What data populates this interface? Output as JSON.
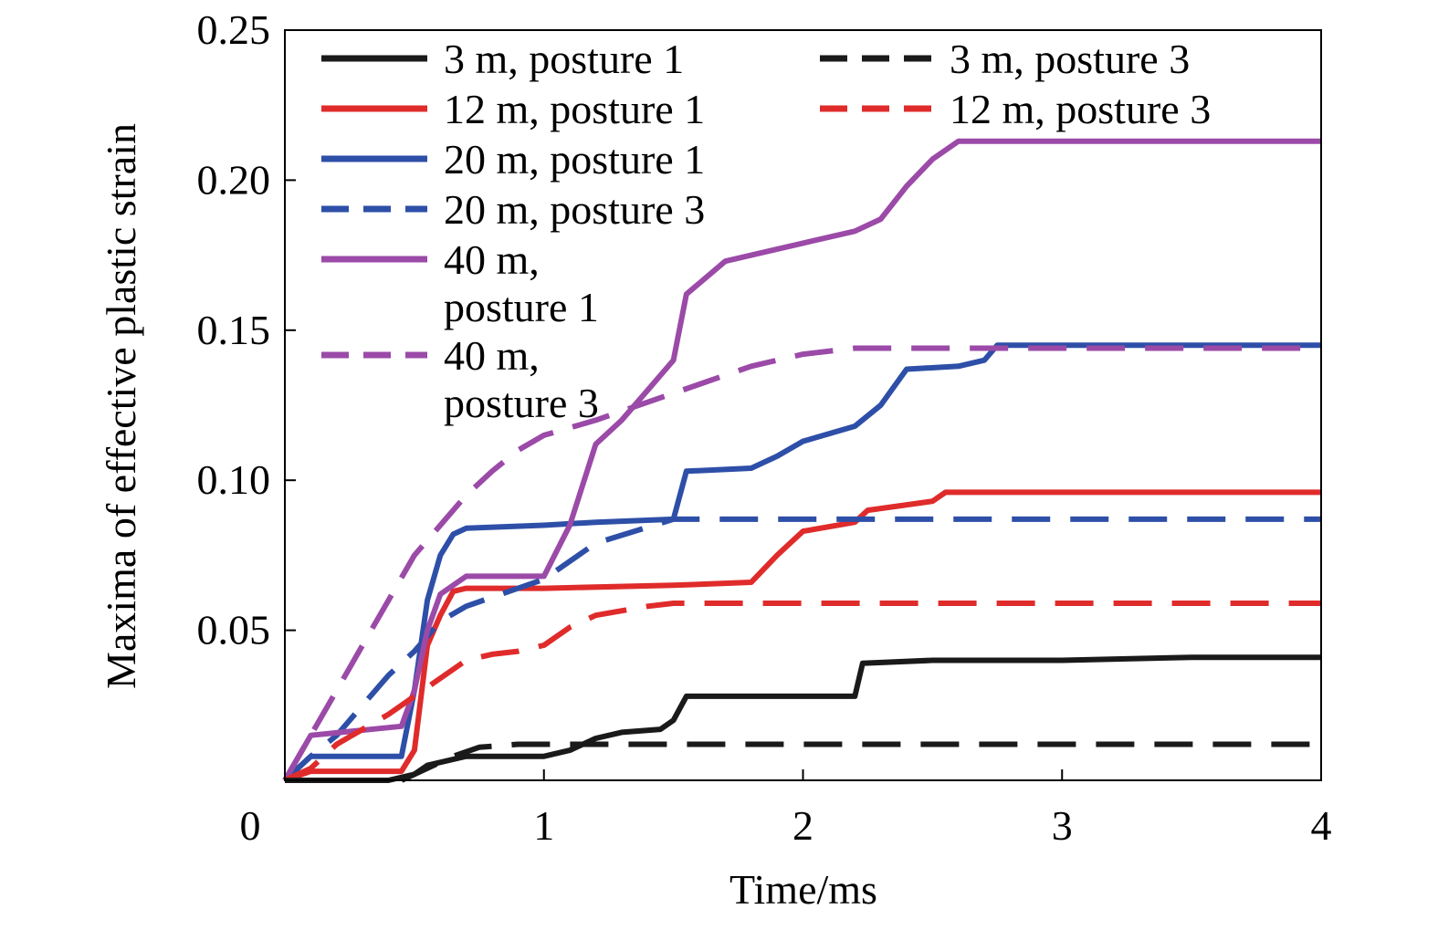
{
  "chart_data": {
    "type": "line",
    "xlabel": "Time/ms",
    "ylabel": "Maxima of effective plastic strain",
    "xlim": [
      0,
      4
    ],
    "ylim": [
      0,
      0.25
    ],
    "x_ticks": [
      "1",
      "2",
      "3",
      "4"
    ],
    "x_origin_label": "0",
    "y_ticks": [
      "0.05",
      "0.10",
      "0.15",
      "0.20",
      "0.25"
    ],
    "grid": false,
    "legend_position": "top-left",
    "series": [
      {
        "name": "3 m, posture 1",
        "color": "#1a1a1a",
        "dash": "solid",
        "x": [
          0,
          0.4,
          0.5,
          0.55,
          0.7,
          0.8,
          1.0,
          1.1,
          1.2,
          1.3,
          1.45,
          1.5,
          1.55,
          1.7,
          2.0,
          2.2,
          2.23,
          2.5,
          3.0,
          3.5,
          4.0
        ],
        "y": [
          0,
          0,
          0.002,
          0.005,
          0.008,
          0.008,
          0.008,
          0.01,
          0.014,
          0.016,
          0.017,
          0.02,
          0.028,
          0.028,
          0.028,
          0.028,
          0.039,
          0.04,
          0.04,
          0.041,
          0.041
        ]
      },
      {
        "name": "12 m, posture 1",
        "color": "#e02b2b",
        "dash": "solid",
        "x": [
          0,
          0.1,
          0.45,
          0.5,
          0.55,
          0.6,
          0.65,
          0.7,
          1.0,
          1.5,
          1.8,
          1.9,
          2.0,
          2.2,
          2.25,
          2.5,
          2.55,
          3.0,
          3.5,
          4.0
        ],
        "y": [
          0,
          0.003,
          0.003,
          0.01,
          0.045,
          0.055,
          0.063,
          0.064,
          0.064,
          0.065,
          0.066,
          0.075,
          0.083,
          0.086,
          0.09,
          0.093,
          0.096,
          0.096,
          0.096,
          0.096
        ]
      },
      {
        "name": "20 m, posture 1",
        "color": "#2e4fa8",
        "dash": "solid",
        "x": [
          0,
          0.1,
          0.45,
          0.5,
          0.55,
          0.6,
          0.65,
          0.7,
          1.0,
          1.2,
          1.5,
          1.55,
          1.8,
          1.9,
          2.0,
          2.2,
          2.3,
          2.4,
          2.6,
          2.7,
          2.75,
          3.0,
          3.5,
          4.0
        ],
        "y": [
          0,
          0.008,
          0.008,
          0.03,
          0.06,
          0.075,
          0.082,
          0.084,
          0.085,
          0.086,
          0.087,
          0.103,
          0.104,
          0.108,
          0.113,
          0.118,
          0.125,
          0.137,
          0.138,
          0.14,
          0.145,
          0.145,
          0.145,
          0.145
        ]
      },
      {
        "name": "20 m, posture 3",
        "color": "#2e4fa8",
        "dash": "dashed",
        "x": [
          0,
          0.1,
          0.2,
          0.3,
          0.4,
          0.5,
          0.6,
          0.7,
          0.8,
          0.9,
          1.0,
          1.2,
          1.5,
          2.0,
          2.5,
          3.0,
          3.5,
          4.0
        ],
        "y": [
          0,
          0.008,
          0.015,
          0.025,
          0.035,
          0.043,
          0.053,
          0.058,
          0.061,
          0.064,
          0.067,
          0.079,
          0.087,
          0.087,
          0.087,
          0.087,
          0.087,
          0.087
        ]
      },
      {
        "name": "40 m, posture 1",
        "color": "#9b4aa8",
        "dash": "solid",
        "x": [
          0,
          0.1,
          0.45,
          0.5,
          0.55,
          0.6,
          0.7,
          1.0,
          1.1,
          1.2,
          1.3,
          1.4,
          1.5,
          1.55,
          1.7,
          1.8,
          2.0,
          2.2,
          2.3,
          2.4,
          2.5,
          2.6,
          3.0,
          3.5,
          4.0
        ],
        "y": [
          0,
          0.015,
          0.018,
          0.03,
          0.05,
          0.062,
          0.068,
          0.068,
          0.085,
          0.112,
          0.12,
          0.13,
          0.14,
          0.162,
          0.173,
          0.175,
          0.179,
          0.183,
          0.187,
          0.198,
          0.207,
          0.213,
          0.213,
          0.213,
          0.213
        ]
      },
      {
        "name": "40 m, posture 3",
        "color": "#9b4aa8",
        "dash": "dashed",
        "x": [
          0,
          0.1,
          0.2,
          0.3,
          0.4,
          0.5,
          0.6,
          0.7,
          0.8,
          0.9,
          1.0,
          1.2,
          1.4,
          1.6,
          1.8,
          2.0,
          2.2,
          2.5,
          3.0,
          3.5,
          4.0
        ],
        "y": [
          0,
          0.015,
          0.03,
          0.045,
          0.06,
          0.075,
          0.085,
          0.095,
          0.103,
          0.11,
          0.115,
          0.12,
          0.126,
          0.132,
          0.138,
          0.142,
          0.144,
          0.144,
          0.144,
          0.144,
          0.144
        ]
      },
      {
        "name": "12 m, posture 3",
        "color": "#e02b2b",
        "dash": "dashed",
        "x": [
          0,
          0.1,
          0.2,
          0.3,
          0.4,
          0.5,
          0.6,
          0.7,
          0.8,
          0.9,
          1.0,
          1.1,
          1.2,
          1.4,
          1.5,
          2.0,
          2.5,
          3.0,
          3.5,
          4.0
        ],
        "y": [
          0,
          0.004,
          0.012,
          0.017,
          0.022,
          0.028,
          0.034,
          0.04,
          0.042,
          0.043,
          0.045,
          0.051,
          0.055,
          0.058,
          0.059,
          0.059,
          0.059,
          0.059,
          0.059,
          0.059
        ]
      },
      {
        "name": "3 m, posture 3",
        "color": "#1a1a1a",
        "dash": "dashed",
        "x": [
          0,
          0.45,
          0.55,
          0.65,
          0.75,
          0.9,
          1.0,
          1.1,
          1.2,
          1.5,
          2.0,
          2.5,
          3.0,
          3.5,
          4.0
        ],
        "y": [
          0,
          0,
          0.004,
          0.008,
          0.011,
          0.012,
          0.012,
          0.012,
          0.012,
          0.012,
          0.012,
          0.012,
          0.012,
          0.012,
          0.012
        ]
      }
    ],
    "legend": [
      {
        "series": 0,
        "lines": [
          "3 m, posture 1"
        ]
      },
      {
        "series": 1,
        "lines": [
          "12 m, posture 1"
        ]
      },
      {
        "series": 2,
        "lines": [
          "20 m, posture 1"
        ]
      },
      {
        "series": 3,
        "lines": [
          "20 m, posture 3"
        ]
      },
      {
        "series": 4,
        "lines": [
          "40 m,",
          "posture 1"
        ]
      },
      {
        "series": 5,
        "lines": [
          "40 m,",
          "posture 3"
        ]
      },
      {
        "series": 7,
        "lines": [
          "3 m, posture 3"
        ]
      },
      {
        "series": 6,
        "lines": [
          "12 m, posture 3"
        ]
      }
    ]
  }
}
